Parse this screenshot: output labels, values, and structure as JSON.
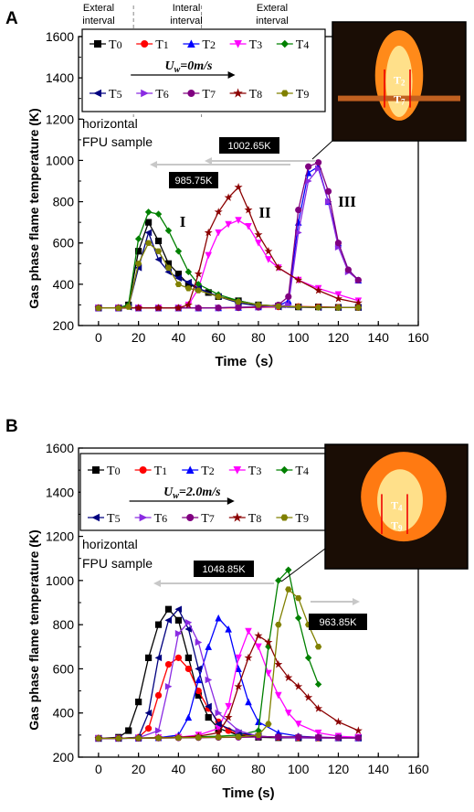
{
  "chart_data": [
    {
      "type": "line",
      "panel": "A",
      "ylabel": "Gas phase flame temperature (K)",
      "xlabel": "Time（s）",
      "xlim": [
        -10,
        160
      ],
      "ylim": [
        200,
        1600
      ],
      "xticks": [
        "0",
        "20",
        "40",
        "60",
        "80",
        "100",
        "120",
        "140",
        "160"
      ],
      "yticks": [
        "200",
        "400",
        "600",
        "800",
        "1000",
        "1200",
        "1400",
        "1600"
      ],
      "interval_labels": [
        "Exteral\ninterval",
        "Interal\ninterval",
        "Exteral\ninterval"
      ],
      "legend_flow": "U_w=0m/s",
      "sample_note": [
        "horizontal",
        "FPU sample"
      ],
      "stage_labels": [
        "I",
        "II",
        "III"
      ],
      "annotations": [
        "1002.65K",
        "985.75K"
      ],
      "photo_labels": [
        "T2",
        "T7"
      ],
      "series": [
        {
          "name": "T0",
          "color": "#000000",
          "marker": "square",
          "x": [
            0,
            10,
            15,
            20,
            25,
            30,
            35,
            40,
            45,
            50,
            55,
            60,
            70,
            80,
            90,
            100,
            110,
            120,
            130
          ],
          "y": [
            285,
            285,
            300,
            560,
            700,
            610,
            500,
            450,
            400,
            380,
            360,
            340,
            320,
            300,
            295,
            290,
            290,
            288,
            288
          ]
        },
        {
          "name": "T1",
          "color": "#ff0000",
          "marker": "circle",
          "x": [
            0,
            10,
            20,
            30,
            40,
            50,
            60,
            70,
            80,
            90,
            100,
            110,
            120,
            130
          ],
          "y": [
            285,
            285,
            285,
            285,
            285,
            285,
            285,
            286,
            288,
            290,
            292,
            290,
            288,
            287
          ]
        },
        {
          "name": "T2",
          "color": "#0000ff",
          "marker": "triangle-up",
          "x": [
            0,
            10,
            20,
            30,
            40,
            50,
            60,
            70,
            80,
            90,
            95,
            100,
            105,
            110,
            115,
            120,
            125,
            130
          ],
          "y": [
            285,
            285,
            285,
            285,
            285,
            285,
            286,
            288,
            290,
            295,
            320,
            700,
            940,
            970,
            800,
            600,
            470,
            420
          ]
        },
        {
          "name": "T3",
          "color": "#ff00ff",
          "marker": "triangle-down",
          "x": [
            0,
            10,
            20,
            30,
            40,
            45,
            50,
            55,
            60,
            65,
            70,
            75,
            80,
            85,
            90,
            100,
            110,
            120,
            130
          ],
          "y": [
            285,
            285,
            285,
            285,
            285,
            300,
            380,
            540,
            650,
            690,
            710,
            680,
            600,
            520,
            480,
            420,
            380,
            350,
            320
          ]
        },
        {
          "name": "T4",
          "color": "#008000",
          "marker": "diamond",
          "x": [
            0,
            10,
            15,
            20,
            25,
            30,
            35,
            40,
            45,
            50,
            60,
            70,
            80,
            90,
            100,
            110,
            120,
            130
          ],
          "y": [
            285,
            285,
            300,
            620,
            750,
            740,
            660,
            560,
            460,
            400,
            350,
            320,
            300,
            295,
            290,
            288,
            287,
            287
          ]
        },
        {
          "name": "T5",
          "color": "#000080",
          "marker": "triangle-left",
          "x": [
            0,
            10,
            15,
            20,
            25,
            30,
            35,
            40,
            45,
            50,
            60,
            70,
            80,
            90,
            100,
            110,
            120,
            130
          ],
          "y": [
            285,
            285,
            290,
            480,
            650,
            520,
            460,
            430,
            410,
            380,
            340,
            310,
            295,
            290,
            288,
            287,
            287,
            287
          ]
        },
        {
          "name": "T6",
          "color": "#8a2be2",
          "marker": "triangle-right",
          "x": [
            0,
            10,
            20,
            30,
            40,
            50,
            60,
            70,
            80,
            90,
            95,
            100,
            105,
            110,
            115,
            120,
            125,
            130
          ],
          "y": [
            285,
            285,
            285,
            285,
            285,
            285,
            286,
            288,
            290,
            292,
            300,
            650,
            900,
            960,
            800,
            580,
            460,
            420
          ]
        },
        {
          "name": "T7",
          "color": "#800080",
          "marker": "circle",
          "x": [
            0,
            10,
            20,
            30,
            40,
            50,
            60,
            70,
            80,
            90,
            95,
            100,
            105,
            110,
            115,
            120,
            125,
            130
          ],
          "y": [
            285,
            285,
            285,
            285,
            285,
            285,
            286,
            288,
            290,
            300,
            340,
            760,
            970,
            990,
            850,
            600,
            470,
            420
          ]
        },
        {
          "name": "T8",
          "color": "#8b0000",
          "marker": "star",
          "x": [
            0,
            10,
            20,
            30,
            40,
            45,
            50,
            55,
            60,
            65,
            70,
            75,
            80,
            85,
            90,
            100,
            110,
            120,
            130
          ],
          "y": [
            285,
            285,
            285,
            285,
            285,
            300,
            450,
            650,
            750,
            820,
            870,
            760,
            640,
            560,
            480,
            420,
            370,
            330,
            310
          ]
        },
        {
          "name": "T9",
          "color": "#808000",
          "marker": "hexagon",
          "x": [
            0,
            10,
            15,
            20,
            25,
            30,
            35,
            40,
            45,
            50,
            60,
            70,
            80,
            90,
            100,
            110,
            120,
            130
          ],
          "y": [
            285,
            285,
            290,
            500,
            600,
            560,
            480,
            400,
            380,
            370,
            340,
            315,
            300,
            293,
            290,
            288,
            287,
            287
          ]
        }
      ]
    },
    {
      "type": "line",
      "panel": "B",
      "ylabel": "Gas phase flame temperature (K)",
      "xlabel": "Time (s)",
      "xlim": [
        -10,
        160
      ],
      "ylim": [
        200,
        1600
      ],
      "xticks": [
        "0",
        "20",
        "40",
        "60",
        "80",
        "100",
        "120",
        "140",
        "160"
      ],
      "yticks": [
        "200",
        "400",
        "600",
        "800",
        "1000",
        "1200",
        "1400",
        "1600"
      ],
      "legend_flow": "U_w=2.0m/s",
      "sample_note": [
        "horizontal",
        "FPU sample"
      ],
      "annotations": [
        "1048.85K",
        "963.85K"
      ],
      "photo_labels": [
        "T4",
        "T9"
      ],
      "series": [
        {
          "name": "T0",
          "color": "#000000",
          "marker": "square",
          "x": [
            0,
            10,
            15,
            20,
            25,
            30,
            35,
            40,
            45,
            50,
            55,
            60,
            70,
            80,
            90,
            100,
            110,
            120,
            130
          ],
          "y": [
            285,
            290,
            320,
            450,
            650,
            800,
            870,
            820,
            650,
            480,
            380,
            330,
            300,
            290,
            288,
            287,
            287,
            287,
            287
          ]
        },
        {
          "name": "T1",
          "color": "#ff0000",
          "marker": "circle",
          "x": [
            0,
            10,
            20,
            25,
            30,
            35,
            40,
            45,
            50,
            55,
            60,
            65,
            70,
            80,
            90,
            100,
            110,
            120,
            130
          ],
          "y": [
            285,
            285,
            290,
            330,
            480,
            620,
            650,
            600,
            500,
            420,
            360,
            320,
            305,
            295,
            290,
            288,
            287,
            287,
            287
          ]
        },
        {
          "name": "T2",
          "color": "#0000ff",
          "marker": "triangle-up",
          "x": [
            0,
            10,
            20,
            30,
            40,
            45,
            50,
            55,
            60,
            65,
            70,
            75,
            80,
            90,
            100,
            110,
            120,
            130
          ],
          "y": [
            285,
            285,
            286,
            288,
            300,
            380,
            550,
            700,
            830,
            780,
            600,
            450,
            360,
            310,
            295,
            290,
            288,
            287
          ]
        },
        {
          "name": "T3",
          "color": "#ff00ff",
          "marker": "triangle-down",
          "x": [
            0,
            10,
            20,
            30,
            40,
            50,
            60,
            65,
            70,
            75,
            80,
            85,
            90,
            95,
            100,
            110,
            120,
            130
          ],
          "y": [
            285,
            285,
            286,
            288,
            290,
            300,
            330,
            430,
            650,
            770,
            700,
            580,
            480,
            400,
            350,
            310,
            295,
            290
          ]
        },
        {
          "name": "T4",
          "color": "#008000",
          "marker": "diamond",
          "x": [
            0,
            10,
            20,
            30,
            40,
            50,
            60,
            70,
            80,
            85,
            90,
            95,
            100,
            105,
            110
          ],
          "y": [
            285,
            285,
            286,
            288,
            290,
            292,
            295,
            300,
            320,
            700,
            1000,
            1048,
            830,
            650,
            530
          ]
        },
        {
          "name": "T5",
          "color": "#000080",
          "marker": "triangle-left",
          "x": [
            0,
            10,
            20,
            25,
            30,
            35,
            40,
            45,
            50,
            55,
            60,
            70,
            80,
            90,
            100,
            110,
            120,
            130
          ],
          "y": [
            285,
            285,
            290,
            400,
            650,
            820,
            870,
            780,
            600,
            430,
            350,
            310,
            295,
            290,
            288,
            287,
            287,
            287
          ]
        },
        {
          "name": "T6",
          "color": "#8a2be2",
          "marker": "triangle-right",
          "x": [
            0,
            10,
            20,
            30,
            35,
            40,
            45,
            50,
            55,
            60,
            70,
            80,
            90,
            100,
            110,
            120,
            130
          ],
          "y": [
            285,
            285,
            288,
            320,
            520,
            760,
            810,
            720,
            550,
            400,
            320,
            295,
            290,
            288,
            287,
            287,
            287
          ]
        },
        {
          "name": "T7",
          "color": "#800080",
          "marker": "circle",
          "x": [
            0,
            10,
            20,
            30,
            40,
            50,
            60,
            70,
            80,
            90,
            100,
            110,
            120,
            130
          ],
          "y": [
            285,
            285,
            285,
            286,
            287,
            288,
            289,
            290,
            291,
            292,
            292,
            290,
            288,
            287
          ]
        },
        {
          "name": "T8",
          "color": "#8b0000",
          "marker": "star",
          "x": [
            0,
            10,
            20,
            30,
            40,
            50,
            60,
            65,
            70,
            75,
            80,
            85,
            90,
            95,
            100,
            105,
            110,
            120,
            130
          ],
          "y": [
            285,
            285,
            286,
            288,
            290,
            295,
            310,
            380,
            520,
            650,
            750,
            720,
            620,
            560,
            520,
            470,
            420,
            360,
            320
          ]
        },
        {
          "name": "T9",
          "color": "#808000",
          "marker": "hexagon",
          "x": [
            0,
            10,
            20,
            30,
            40,
            50,
            60,
            70,
            80,
            85,
            90,
            95,
            100,
            105,
            110
          ],
          "y": [
            285,
            285,
            286,
            287,
            288,
            289,
            290,
            292,
            300,
            350,
            800,
            960,
            920,
            800,
            700
          ]
        }
      ]
    }
  ]
}
